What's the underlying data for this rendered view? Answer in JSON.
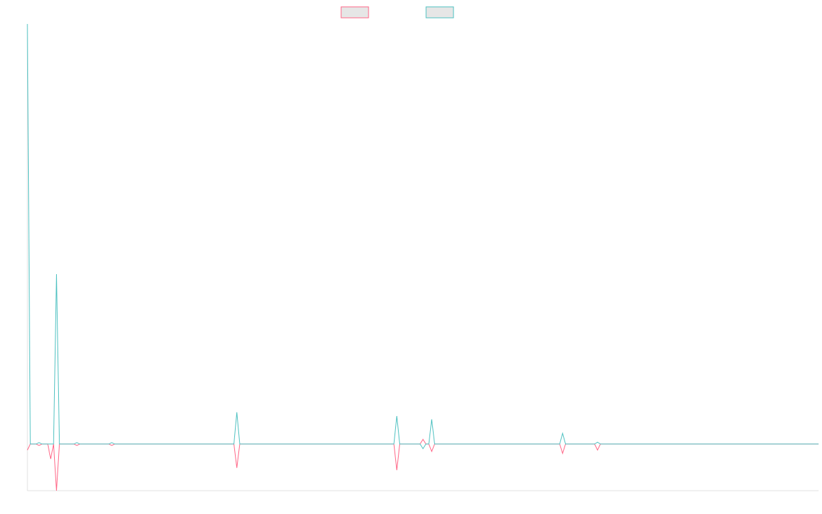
{
  "chart_data": {
    "type": "line",
    "x": [
      0,
      1,
      3,
      4,
      5,
      7,
      8,
      9,
      10,
      11,
      16,
      17,
      18,
      28,
      29,
      30,
      71,
      72,
      73,
      126,
      127,
      128,
      135,
      136,
      137,
      138,
      139,
      140,
      183,
      184,
      185,
      195,
      196,
      197,
      272
    ],
    "xlim": [
      0,
      272
    ],
    "ylim": [
      -1,
      9
    ],
    "legend": "top",
    "series": [
      {
        "color": "#ff6384",
        "values": [
          -0.13,
          0,
          0,
          -0.03,
          0,
          0,
          -0.32,
          0,
          -1,
          0,
          0,
          -0.03,
          0,
          0,
          -0.03,
          0,
          0,
          -0.51,
          0,
          0,
          -0.56,
          0,
          0,
          0.1,
          0,
          0,
          -0.16,
          0,
          0,
          -0.2,
          0,
          0,
          -0.13,
          0,
          0
        ]
      },
      {
        "color": "#4bc0c0",
        "values": [
          9,
          0,
          0,
          0.03,
          0,
          0,
          0,
          0,
          3.64,
          0,
          0,
          0.03,
          0,
          0,
          0.03,
          0,
          0,
          0.68,
          0,
          0,
          0.6,
          0,
          0,
          -0.1,
          0,
          0,
          0.53,
          0,
          0,
          0.23,
          0,
          0,
          0.04,
          0,
          0
        ]
      }
    ]
  }
}
